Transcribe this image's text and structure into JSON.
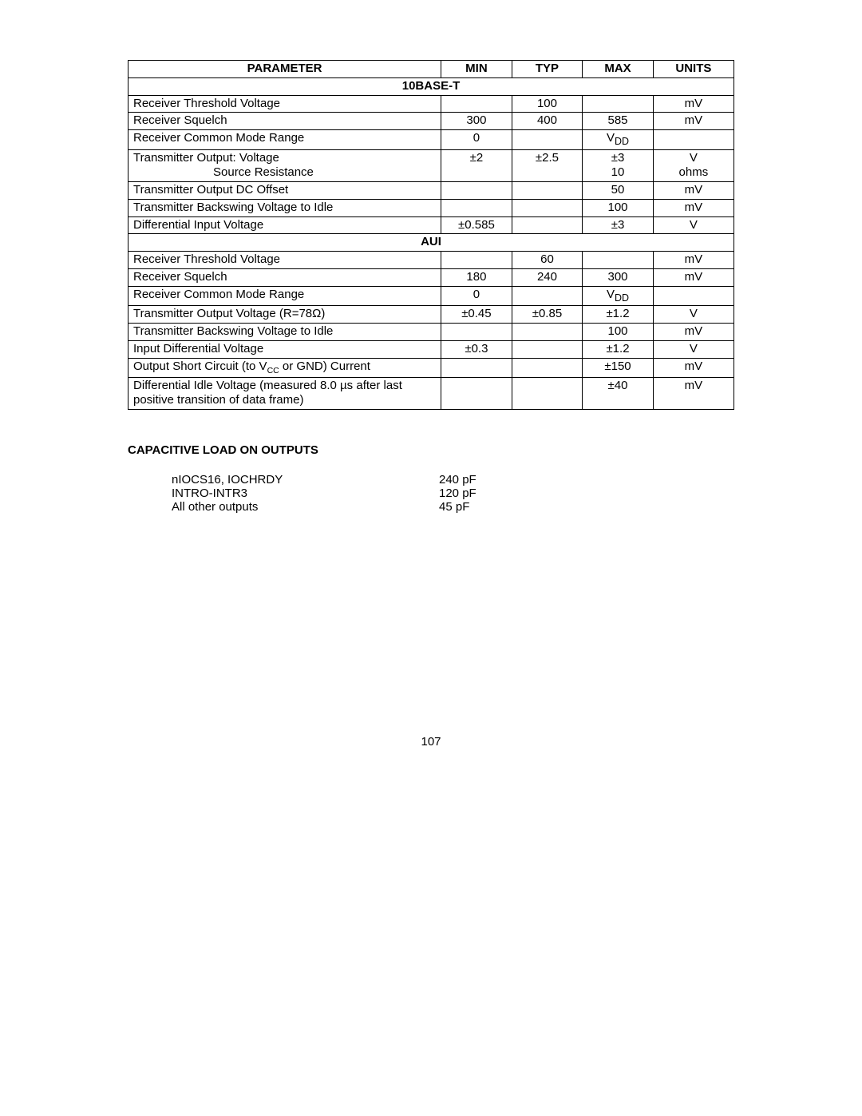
{
  "table": {
    "headers": {
      "parameter": "PARAMETER",
      "min": "MIN",
      "typ": "TYP",
      "max": "MAX",
      "units": "UNITS"
    },
    "section1": "10BASE-T",
    "section2": "AUI",
    "rows_10baset": [
      {
        "param": "Receiver Threshold Voltage",
        "min": "",
        "typ": "100",
        "max": "",
        "units": "mV"
      },
      {
        "param": "Receiver Squelch",
        "min": "300",
        "typ": "400",
        "max": "585",
        "units": "mV"
      },
      {
        "param": "Receiver Common Mode Range",
        "min": "0",
        "typ": "",
        "max": "V<sub>DD</sub>",
        "units": ""
      },
      {
        "param": "Transmitter Output:  Voltage<br><span class=\"indent\">Source Resistance</span>",
        "min": "±2",
        "typ": "±2.5",
        "max": "±3<br>10",
        "units": "V<br>ohms"
      },
      {
        "param": "Transmitter Output DC Offset",
        "min": "",
        "typ": "",
        "max": "50",
        "units": "mV"
      },
      {
        "param": "Transmitter Backswing Voltage to Idle",
        "min": "",
        "typ": "",
        "max": "100",
        "units": "mV"
      },
      {
        "param": "Differential Input Voltage",
        "min": "±0.585",
        "typ": "",
        "max": "±3",
        "units": "V"
      }
    ],
    "rows_aui": [
      {
        "param": "Receiver Threshold Voltage",
        "min": "",
        "typ": "60",
        "max": "",
        "units": "mV"
      },
      {
        "param": "Receiver Squelch",
        "min": "180",
        "typ": "240",
        "max": "300",
        "units": "mV"
      },
      {
        "param": "Receiver Common Mode Range",
        "min": "0",
        "typ": "",
        "max": "V<sub>DD</sub>",
        "units": ""
      },
      {
        "param": "Transmitter Output Voltage (R=78Ω)",
        "min": "±0.45",
        "typ": "±0.85",
        "max": "±1.2",
        "units": "V"
      },
      {
        "param": "Transmitter Backswing Voltage to Idle",
        "min": "",
        "typ": "",
        "max": "100",
        "units": "mV"
      },
      {
        "param": "Input Differential Voltage",
        "min": "±0.3",
        "typ": "",
        "max": "±1.2",
        "units": "V"
      },
      {
        "param": "Output Short Circuit (to V<span class=\"sub\">CC</span> or GND) Current",
        "min": "",
        "typ": "",
        "max": "±150",
        "units": "mV"
      },
      {
        "param": "Differential Idle Voltage (measured   8.0 µs after last positive transition of data frame)",
        "min": "",
        "typ": "",
        "max": "±40",
        "units": "mV"
      }
    ]
  },
  "cap_section": {
    "heading": "CAPACITIVE LOAD ON OUTPUTS",
    "items": [
      {
        "label": "nIOCS16, IOCHRDY",
        "value": "240 pF"
      },
      {
        "label": "INTRO-INTR3",
        "value": "120 pF"
      },
      {
        "label": "All other outputs",
        "value": "45 pF"
      }
    ]
  },
  "page_number": "107"
}
